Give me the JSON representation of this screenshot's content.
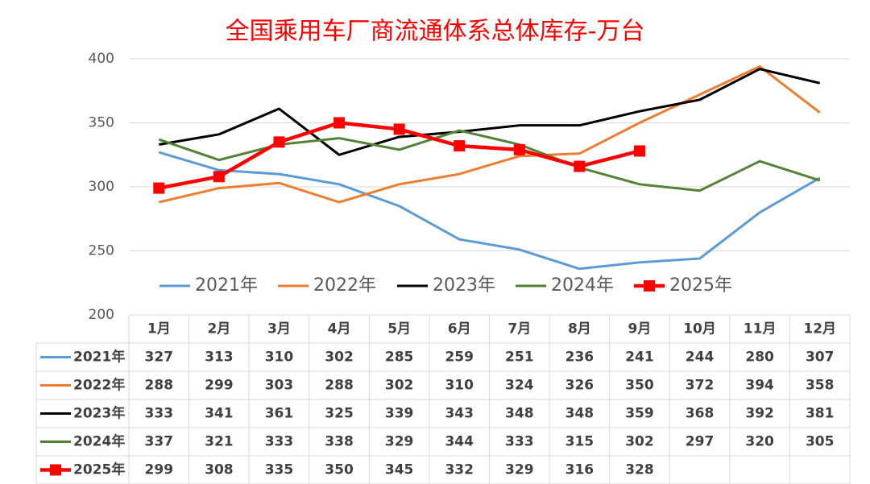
{
  "chart_data": {
    "type": "line",
    "title": "全国乘用车厂商流通体系总体库存-万台",
    "categories": [
      "1月",
      "2月",
      "3月",
      "4月",
      "5月",
      "6月",
      "7月",
      "8月",
      "9月",
      "10月",
      "11月",
      "12月"
    ],
    "series": [
      {
        "name": "2021年",
        "color": "#5b9bd5",
        "values": [
          327,
          313,
          310,
          302,
          285,
          259,
          251,
          236,
          241,
          244,
          280,
          307
        ]
      },
      {
        "name": "2022年",
        "color": "#ed7d31",
        "values": [
          288,
          299,
          303,
          288,
          302,
          310,
          324,
          326,
          350,
          372,
          394,
          358
        ]
      },
      {
        "name": "2023年",
        "color": "#000000",
        "values": [
          333,
          341,
          361,
          325,
          339,
          343,
          348,
          348,
          359,
          368,
          392,
          381
        ]
      },
      {
        "name": "2024年",
        "color": "#548235",
        "values": [
          337,
          321,
          333,
          338,
          329,
          344,
          333,
          315,
          302,
          297,
          320,
          305
        ]
      },
      {
        "name": "2025年",
        "color": "#ff0000",
        "marker": "square",
        "values": [
          299,
          308,
          335,
          350,
          345,
          332,
          329,
          316,
          328,
          null,
          null,
          null
        ]
      }
    ],
    "ylim": [
      200,
      400
    ],
    "yticks": [
      200,
      250,
      300,
      350,
      400
    ],
    "grid": true,
    "legend": "bottom"
  }
}
